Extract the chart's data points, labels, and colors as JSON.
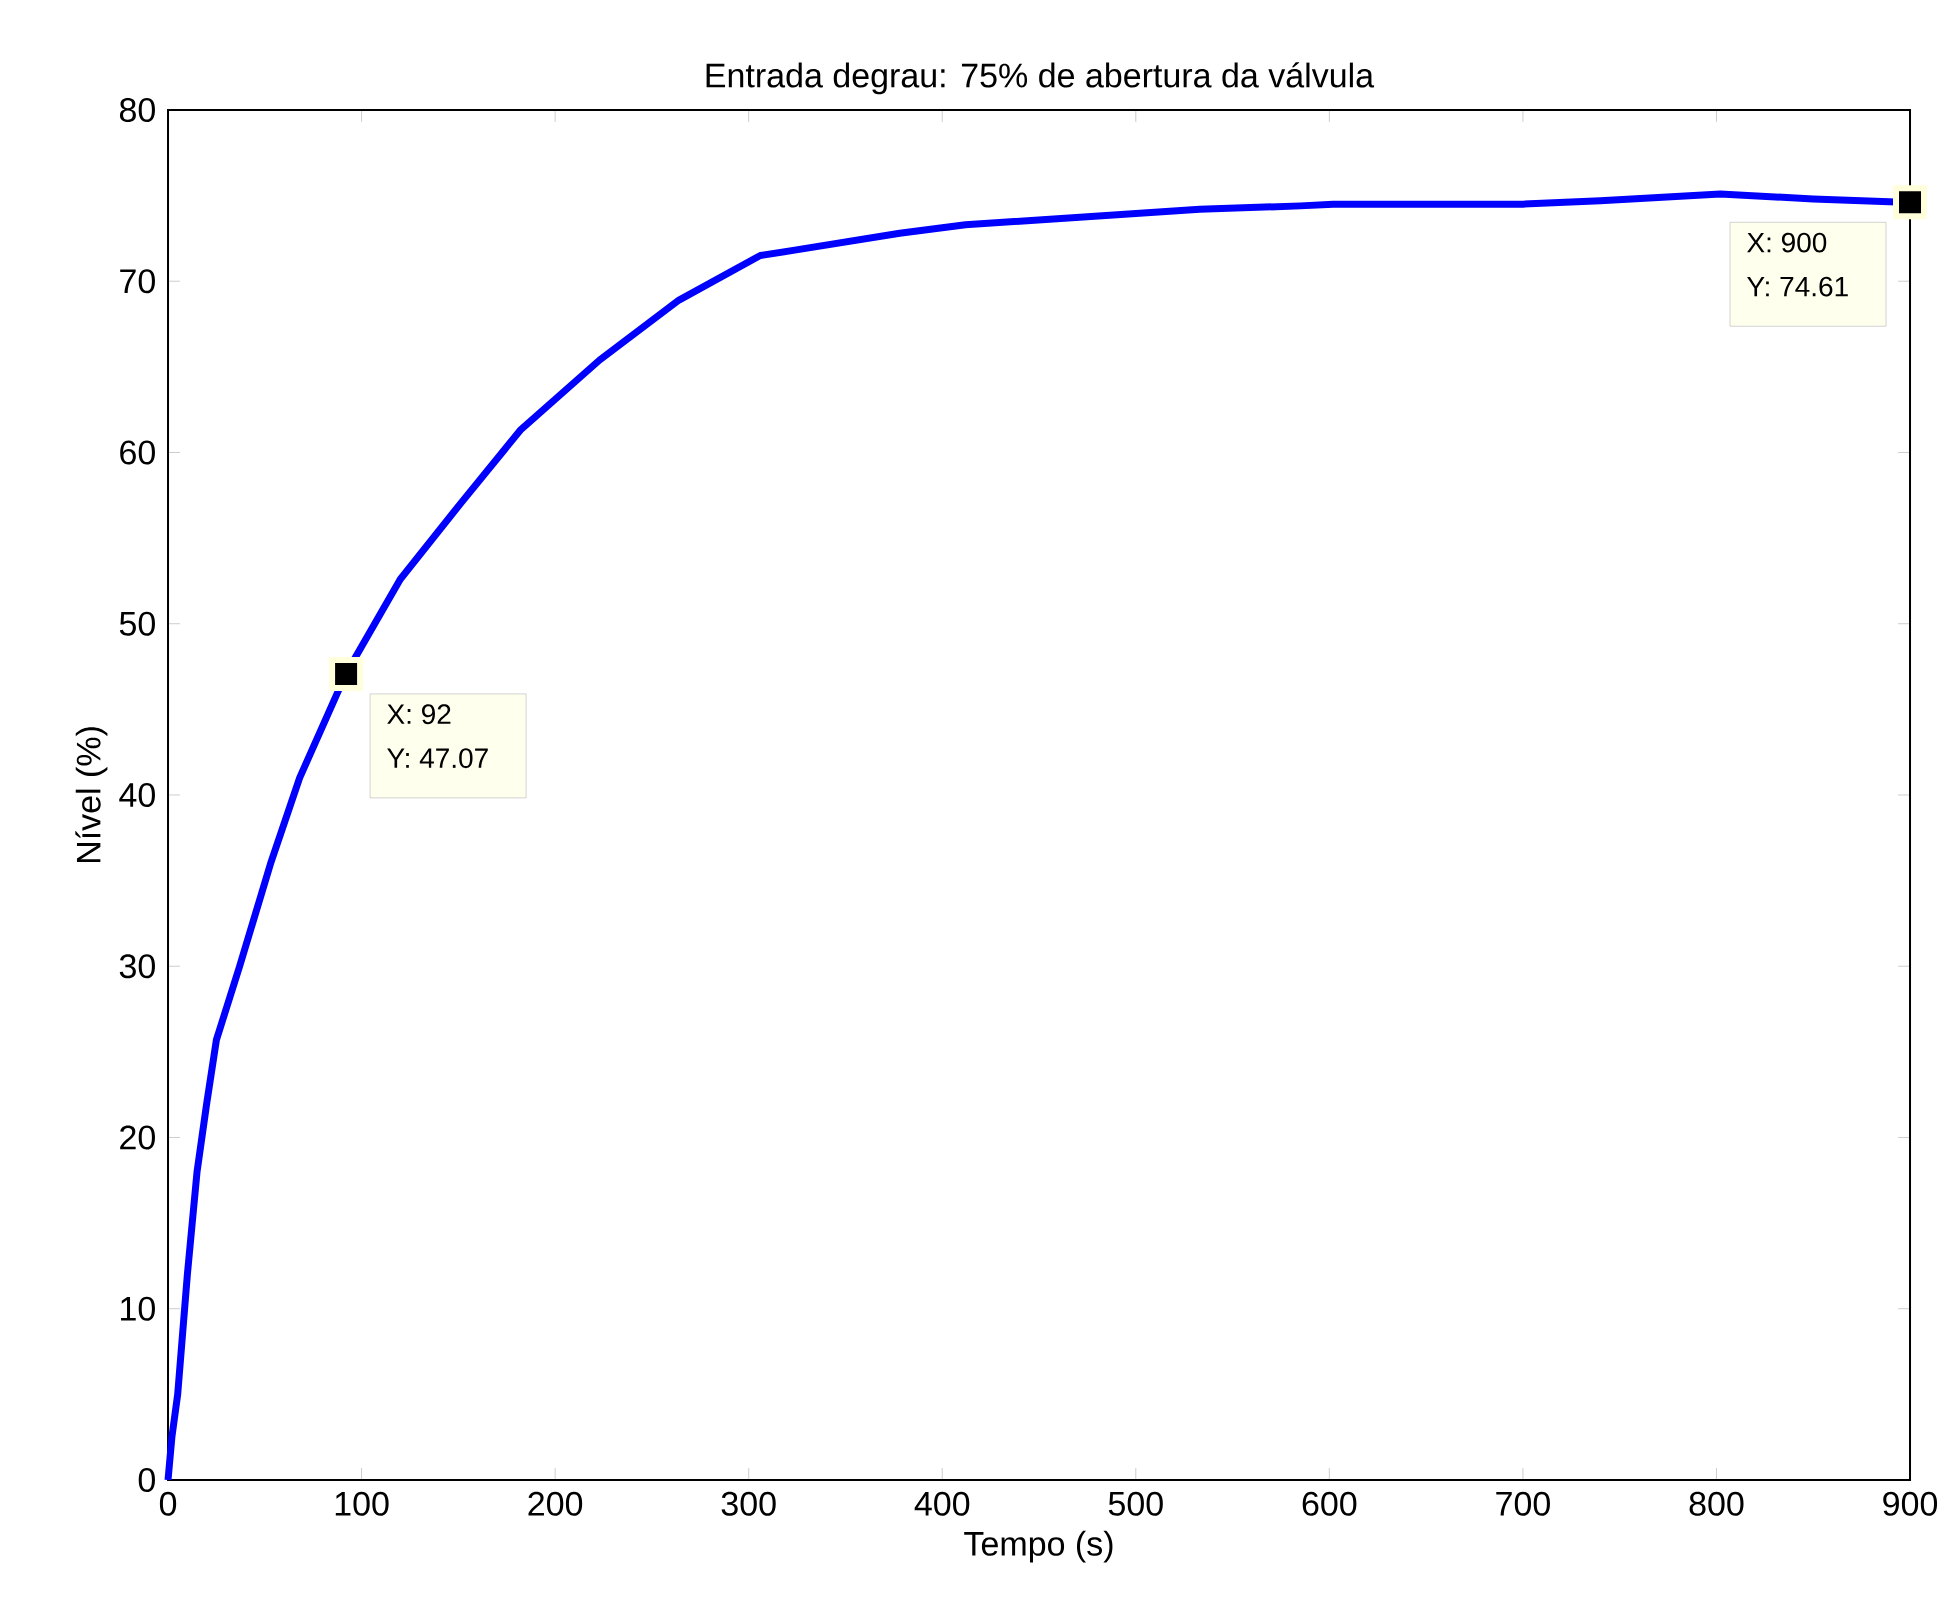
{
  "chart_data": {
    "type": "line",
    "title": "Entrada degrau: 75% de abertura da válvula",
    "xlabel": "Tempo (s)",
    "ylabel": "Nível (%)",
    "x": [
      0,
      2,
      5,
      10,
      15,
      20,
      25,
      37,
      53,
      68,
      92,
      120,
      151,
      182,
      223,
      264,
      306,
      323,
      378,
      412,
      533,
      585,
      602,
      700,
      740,
      802,
      850,
      900
    ],
    "series": [
      {
        "color": "#0000ff",
        "values": [
          0,
          2.5,
          5,
          12,
          18,
          22,
          25.7,
          30,
          36,
          41,
          47.1,
          52.6,
          57,
          61.3,
          65.4,
          68.9,
          71.5,
          71.8,
          72.8,
          73.3,
          74.2,
          74.4,
          74.5,
          74.5,
          74.7,
          75.1,
          74.8,
          74.6
        ]
      },
      {
        "type": "scatter",
        "marker": "square",
        "color": "#000000",
        "x": [
          92,
          900
        ],
        "values": [
          47.07,
          74.61
        ]
      }
    ],
    "xlim": [
      0,
      900
    ],
    "ylim": [
      0,
      80
    ],
    "xticks": [
      0,
      100,
      200,
      300,
      400,
      500,
      600,
      700,
      800,
      900
    ],
    "yticks": [
      0,
      10,
      20,
      30,
      40,
      50,
      60,
      70,
      80
    ],
    "annotations": [
      "X: 92",
      "Y: 47.07",
      "X: 900",
      "Y: 74.61"
    ],
    "grid": false,
    "marker": "none",
    "line_style": "solid"
  }
}
